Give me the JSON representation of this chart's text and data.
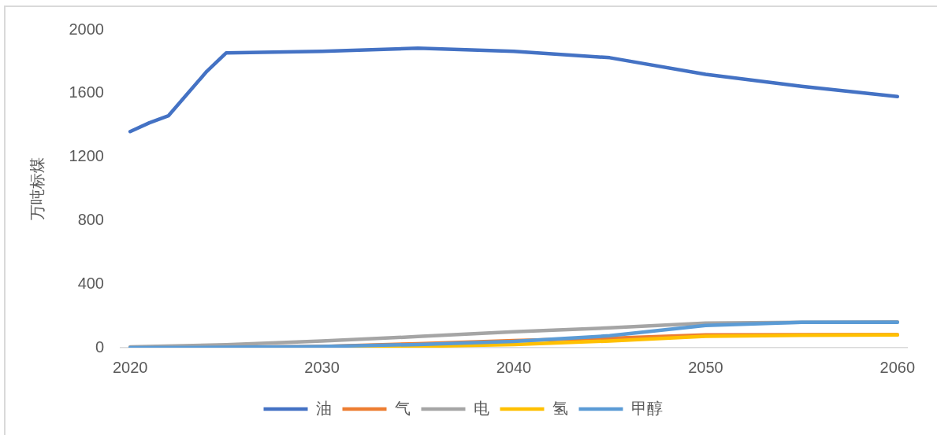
{
  "chart_data": {
    "type": "line",
    "ylabel": "万吨标煤",
    "xlim": [
      2019.5,
      2060.5
    ],
    "xticks": [
      2020,
      2030,
      2040,
      2050,
      2060
    ],
    "ylim": [
      0,
      2000
    ],
    "yticks": [
      0,
      400,
      800,
      1200,
      1600,
      2000
    ],
    "grid": false,
    "legend": "bottom",
    "marker": "none",
    "line_style": "solid",
    "series": [
      {
        "name": "油",
        "color": "#4472c4",
        "x": [
          2020,
          2021,
          2022,
          2023,
          2024,
          2025,
          2030,
          2035,
          2040,
          2045,
          2050,
          2055,
          2060
        ],
        "values": [
          1360,
          1415,
          1460,
          1600,
          1740,
          1855,
          1865,
          1885,
          1865,
          1825,
          1720,
          1645,
          1580
        ]
      },
      {
        "name": "气",
        "color": "#ed7d31",
        "x": [
          2020,
          2025,
          2030,
          2035,
          2040,
          2045,
          2050,
          2055,
          2060
        ],
        "values": [
          0,
          2,
          8,
          25,
          45,
          60,
          80,
          82,
          82
        ]
      },
      {
        "name": "电",
        "color": "#a5a5a5",
        "x": [
          2020,
          2025,
          2030,
          2035,
          2040,
          2045,
          2050,
          2055,
          2060
        ],
        "values": [
          5,
          18,
          42,
          70,
          100,
          125,
          155,
          160,
          162
        ]
      },
      {
        "name": "氢",
        "color": "#ffc000",
        "x": [
          2030,
          2035,
          2040,
          2045,
          2050,
          2055,
          2060
        ],
        "values": [
          0,
          8,
          20,
          42,
          72,
          78,
          80
        ]
      },
      {
        "name": "甲醇",
        "color": "#5b9bd5",
        "x": [
          2020,
          2025,
          2030,
          2035,
          2040,
          2045,
          2050,
          2055,
          2060
        ],
        "values": [
          0,
          2,
          8,
          20,
          40,
          75,
          140,
          160,
          160
        ]
      }
    ]
  }
}
